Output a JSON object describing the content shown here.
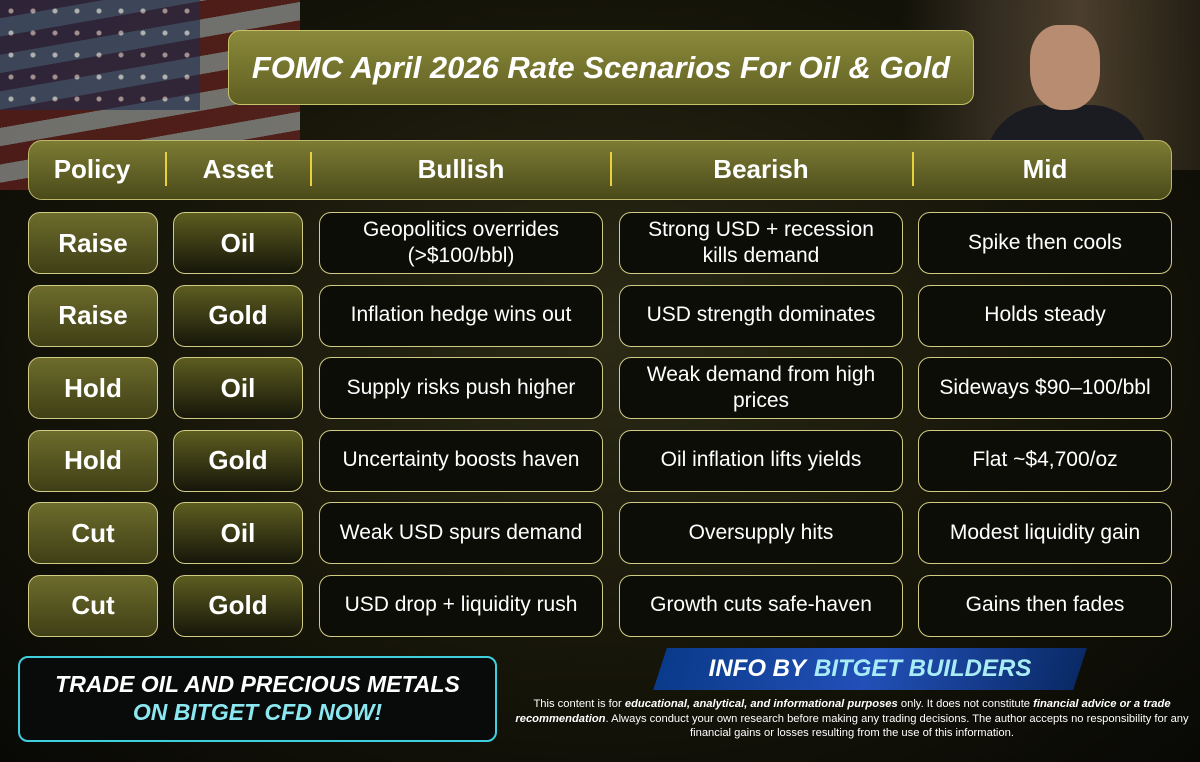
{
  "title": "FOMC April 2026 Rate Scenarios For Oil & Gold",
  "table": {
    "headers": [
      "Policy",
      "Asset",
      "Bullish",
      "Bearish",
      "Mid"
    ],
    "rows": [
      [
        "Raise",
        "Oil",
        "Geopolitics overrides (>$100/bbl)",
        "Strong USD + recession kills demand",
        "Spike then cools"
      ],
      [
        "Raise",
        "Gold",
        "Inflation hedge wins out",
        "USD strength dominates",
        "Holds steady"
      ],
      [
        "Hold",
        "Oil",
        "Supply risks push higher",
        "Weak demand from high prices",
        "Sideways $90–100/bbl"
      ],
      [
        "Hold",
        "Gold",
        "Uncertainty boosts haven",
        "Oil inflation lifts yields",
        "Flat ~$4,700/oz"
      ],
      [
        "Cut",
        "Oil",
        "Weak USD spurs demand",
        "Oversupply hits",
        "Modest liquidity gain"
      ],
      [
        "Cut",
        "Gold",
        "USD drop + liquidity rush",
        "Growth cuts safe-haven",
        "Gains then fades"
      ]
    ]
  },
  "cta": {
    "line1": "TRADE OIL AND PRECIOUS METALS",
    "line2": "ON BITGET CFD NOW!"
  },
  "info": {
    "prefix": "INFO BY",
    "brand": "BITGET BUILDERS"
  },
  "disclaimer": {
    "parts": [
      "This content is for ",
      "educational, analytical, and informational purposes",
      " only. It does not constitute ",
      "financial advice or a trade recommendation",
      ". Always conduct your own research before making any trading decisions. The author accepts no responsibility for any financial gains or losses resulting from the use of this information."
    ]
  }
}
